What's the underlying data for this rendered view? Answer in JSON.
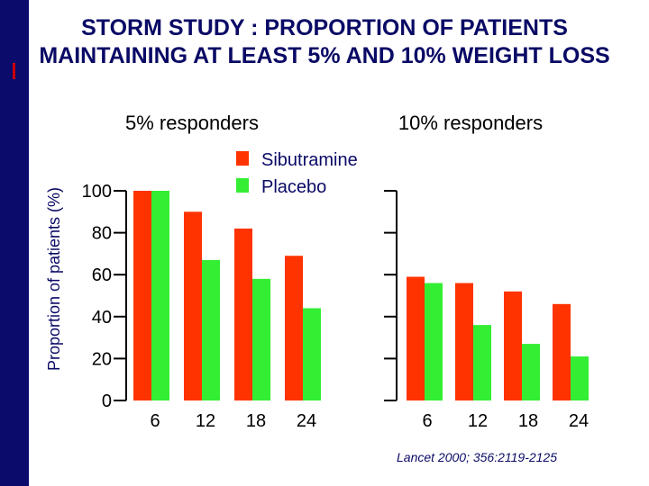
{
  "slide": {
    "title": "STORM STUDY : PROPORTION OF PATIENTS MAINTAINING AT LEAST 5% AND 10% WEIGHT LOSS",
    "source": "Lancet 2000; 356:2119-2125"
  },
  "chart_data": [
    {
      "type": "bar",
      "title": "5% responders",
      "ylabel": "Proportion of patients (%)",
      "xlabel": "",
      "ylim": [
        0,
        100
      ],
      "yticks": [
        0,
        20,
        40,
        60,
        80,
        100
      ],
      "categories": [
        "6",
        "12",
        "18",
        "24"
      ],
      "series": [
        {
          "name": "Sibutramine",
          "values": [
            100,
            90,
            82,
            69
          ]
        },
        {
          "name": "Placebo",
          "values": [
            100,
            67,
            58,
            44
          ]
        }
      ]
    },
    {
      "type": "bar",
      "title": "10% responders",
      "xlabel": "",
      "ylim": [
        0,
        100
      ],
      "categories": [
        "6",
        "12",
        "18",
        "24"
      ],
      "series": [
        {
          "name": "Sibutramine",
          "values": [
            59,
            56,
            52,
            46
          ]
        },
        {
          "name": "Placebo",
          "values": [
            56,
            36,
            27,
            21
          ]
        }
      ]
    }
  ],
  "legend": {
    "items": [
      {
        "label": "Sibutramine",
        "color": "#ff3300"
      },
      {
        "label": "Placebo",
        "color": "#33ee33"
      }
    ]
  }
}
